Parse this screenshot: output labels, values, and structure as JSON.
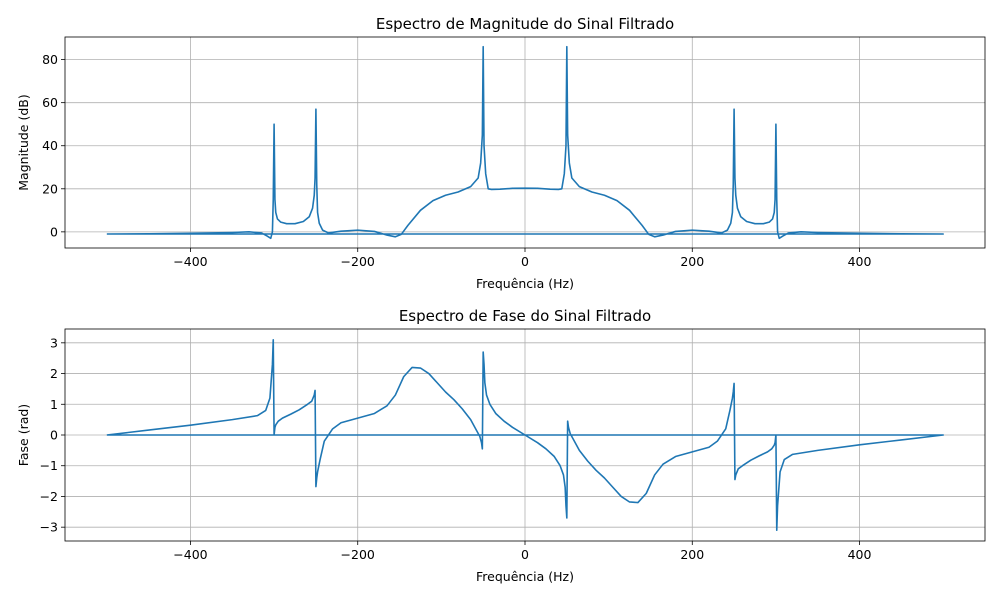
{
  "chart_data": [
    {
      "type": "line",
      "title": "Espectro de Magnitude do Sinal Filtrado",
      "xlabel": "Frequência (Hz)",
      "ylabel": "Magnitude (dB)",
      "xlim": [
        -550,
        550
      ],
      "ylim": [
        -7.5,
        90.5
      ],
      "grid": true,
      "color": "#1f77b4",
      "xticks": [
        -400,
        -200,
        0,
        200,
        400
      ],
      "xtick_labels": [
        "−400",
        "−200",
        "0",
        "200",
        "400"
      ],
      "yticks": [
        0,
        20,
        40,
        60,
        80
      ],
      "ytick_labels": [
        "0",
        "20",
        "40",
        "60",
        "80"
      ],
      "series": [
        {
          "x": [
            -500,
            -450,
            -400,
            -350,
            -330,
            -315,
            -308,
            -304,
            -302,
            -301,
            -300,
            -299,
            -298,
            -296,
            -292,
            -285,
            -275,
            -265,
            -258,
            -254,
            -252,
            -251,
            -250,
            -249,
            -248,
            -246,
            -242,
            -235,
            -220,
            -200,
            -180,
            -165,
            -155,
            -148,
            -140,
            -125,
            -110,
            -95,
            -80,
            -65,
            -56,
            -53,
            -51,
            -50,
            -49,
            -47,
            -44,
            -40,
            -30,
            -15,
            0,
            15,
            30,
            40,
            44,
            47,
            49,
            50,
            51,
            53,
            56,
            65,
            80,
            95,
            110,
            125,
            140,
            148,
            155,
            165,
            180,
            200,
            220,
            235,
            242,
            246,
            248,
            249,
            250,
            251,
            252,
            254,
            258,
            265,
            275,
            285,
            292,
            296,
            298,
            299,
            300,
            301,
            302,
            304,
            308,
            315,
            330,
            350,
            400,
            450,
            500,
            500,
            -500
          ],
          "y": [
            -1,
            -0.9,
            -0.7,
            -0.3,
            0,
            -0.5,
            -2,
            -3,
            0,
            15,
            50,
            15,
            9,
            6,
            4.5,
            3.8,
            3.8,
            4.8,
            7,
            11,
            17,
            25,
            57,
            22,
            9,
            4,
            0.8,
            -0.5,
            0.3,
            0.8,
            0.2,
            -1.5,
            -2.3,
            -1.2,
            3,
            10,
            14.5,
            17,
            18.5,
            21,
            25,
            32,
            45,
            86,
            40,
            27,
            20,
            19.7,
            19.8,
            20.2,
            20.3,
            20.2,
            19.8,
            19.7,
            20,
            27,
            40,
            86,
            45,
            32,
            25,
            21,
            18.5,
            17,
            14.5,
            10,
            3,
            -1.2,
            -2.3,
            -1.5,
            0.2,
            0.8,
            0.3,
            -0.5,
            0.8,
            4,
            9,
            22,
            57,
            25,
            17,
            11,
            7,
            4.8,
            3.8,
            3.8,
            4.5,
            6,
            9,
            15,
            50,
            15,
            0,
            -3,
            -2,
            -0.5,
            0,
            -0.3,
            -0.7,
            -0.9,
            -1,
            -1,
            -1
          ]
        }
      ]
    },
    {
      "type": "line",
      "title": "Espectro de Fase do Sinal Filtrado",
      "xlabel": "Frequência (Hz)",
      "ylabel": "Fase (rad)",
      "xlim": [
        -550,
        550
      ],
      "ylim": [
        -3.45,
        3.45
      ],
      "grid": true,
      "color": "#1f77b4",
      "xticks": [
        -400,
        -200,
        0,
        200,
        400
      ],
      "xtick_labels": [
        "−400",
        "−200",
        "0",
        "200",
        "400"
      ],
      "yticks": [
        -3,
        -2,
        -1,
        0,
        1,
        2,
        3
      ],
      "ytick_labels": [
        "−3",
        "−2",
        "−1",
        "0",
        "1",
        "2",
        "3"
      ],
      "series": [
        {
          "x": [
            -500,
            -450,
            -400,
            -350,
            -320,
            -310,
            -305,
            -302,
            -301,
            -300,
            -299,
            -298,
            -295,
            -290,
            -280,
            -270,
            -260,
            -255,
            -252,
            -251,
            -250,
            -249,
            -248,
            -245,
            -240,
            -230,
            -220,
            -200,
            -180,
            -165,
            -155,
            -145,
            -135,
            -125,
            -115,
            -105,
            -95,
            -85,
            -75,
            -65,
            -58,
            -54,
            -52,
            -51,
            -50,
            -49,
            -48,
            -46,
            -42,
            -35,
            -25,
            -15,
            0,
            15,
            25,
            35,
            42,
            46,
            48,
            49,
            50,
            51,
            52,
            54,
            58,
            65,
            75,
            85,
            95,
            105,
            115,
            125,
            135,
            145,
            155,
            165,
            180,
            200,
            220,
            230,
            240,
            245,
            248,
            249,
            250,
            251,
            252,
            255,
            260,
            270,
            280,
            290,
            295,
            298,
            299,
            300,
            301,
            302,
            305,
            310,
            320,
            350,
            400,
            450,
            500,
            500,
            -500
          ],
          "y": [
            0,
            0.16,
            0.32,
            0.5,
            0.63,
            0.8,
            1.2,
            2.3,
            3.1,
            0,
            0.25,
            0.33,
            0.45,
            0.55,
            0.68,
            0.82,
            1.0,
            1.1,
            1.3,
            1.45,
            -1.68,
            -1.4,
            -1.2,
            -0.8,
            -0.2,
            0.2,
            0.4,
            0.55,
            0.7,
            0.95,
            1.3,
            1.9,
            2.2,
            2.18,
            2.0,
            1.7,
            1.4,
            1.15,
            0.85,
            0.5,
            0.15,
            -0.05,
            -0.25,
            -0.45,
            2.7,
            2.3,
            1.7,
            1.3,
            1.0,
            0.7,
            0.45,
            0.25,
            0,
            -0.25,
            -0.45,
            -0.7,
            -1.0,
            -1.3,
            -1.7,
            -2.3,
            -2.7,
            0.45,
            0.25,
            0.05,
            -0.15,
            -0.5,
            -0.85,
            -1.15,
            -1.4,
            -1.7,
            -2.0,
            -2.18,
            -2.2,
            -1.9,
            -1.3,
            -0.95,
            -0.7,
            -0.55,
            -0.4,
            -0.2,
            0.2,
            0.8,
            1.2,
            1.4,
            1.68,
            -1.45,
            -1.3,
            -1.1,
            -1.0,
            -0.82,
            -0.68,
            -0.55,
            -0.45,
            -0.33,
            -0.25,
            0,
            -3.1,
            -2.3,
            -1.2,
            -0.8,
            -0.63,
            -0.5,
            -0.32,
            -0.16,
            0,
            0,
            0
          ]
        }
      ]
    }
  ]
}
